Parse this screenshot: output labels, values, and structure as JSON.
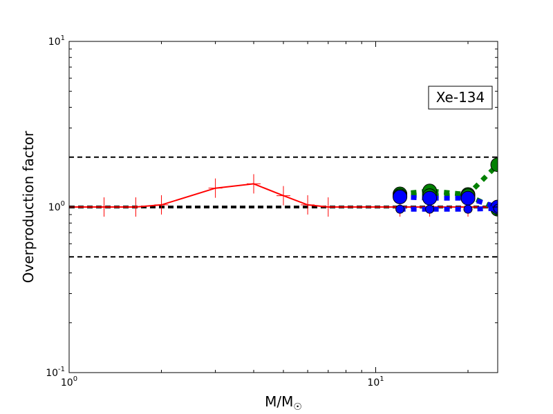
{
  "chart_data": {
    "type": "line",
    "xscale": "log",
    "yscale": "log",
    "xlim": [
      1,
      25
    ],
    "ylim": [
      0.1,
      10
    ],
    "xlabel": "M/M",
    "xlabel_sub": "☉",
    "ylabel": "Overproduction factor",
    "x_ticks": [
      {
        "value": 1,
        "base": "10",
        "exp": "0"
      },
      {
        "value": 10,
        "base": "10",
        "exp": "1"
      }
    ],
    "y_ticks": [
      {
        "value": 0.1,
        "base": "10",
        "exp": "-1"
      },
      {
        "value": 1,
        "base": "10",
        "exp": "0"
      },
      {
        "value": 10,
        "base": "10",
        "exp": "1"
      }
    ],
    "annotation": "Xe-134",
    "reference_lines": [
      {
        "y": 2.0,
        "style": "dashed",
        "color": "#000000",
        "width": "thin"
      },
      {
        "y": 1.0,
        "style": "dashed",
        "color": "#000000",
        "width": "thick"
      },
      {
        "y": 0.5,
        "style": "dashed",
        "color": "#000000",
        "width": "thin"
      }
    ],
    "series": [
      {
        "color": "#ff0000",
        "line": "solid",
        "marker": "plus",
        "x": [
          1.0,
          1.3,
          1.65,
          2.0,
          3.0,
          4.0,
          5.0,
          6.0,
          7.0,
          12.0,
          15.0,
          20.0,
          25.0
        ],
        "y": [
          1.0,
          1.0,
          1.0,
          1.03,
          1.3,
          1.38,
          1.17,
          1.03,
          1.0,
          1.0,
          1.0,
          1.0,
          1.0
        ]
      },
      {
        "color": "#008000",
        "line": "dotted",
        "marker": "circle-large",
        "x": [
          12.0,
          15.0,
          20.0,
          25.0
        ],
        "y": [
          1.2,
          1.25,
          1.19,
          1.8
        ]
      },
      {
        "color": "#008000",
        "line": "dotted",
        "marker": "circle-large",
        "x": [
          12.0,
          15.0,
          20.0,
          25.0
        ],
        "y": [
          1.17,
          1.17,
          1.17,
          0.97
        ]
      },
      {
        "color": "#0000ff",
        "line": "dotted",
        "marker": "circle-large",
        "x": [
          12.0,
          15.0,
          20.0,
          25.0
        ],
        "y": [
          1.15,
          1.13,
          1.13,
          1.0
        ]
      },
      {
        "color": "#0000ff",
        "line": "dotted",
        "marker": "circle-small",
        "x": [
          12.0,
          15.0,
          20.0,
          25.0
        ],
        "y": [
          0.97,
          0.97,
          0.97,
          0.98
        ]
      }
    ]
  }
}
